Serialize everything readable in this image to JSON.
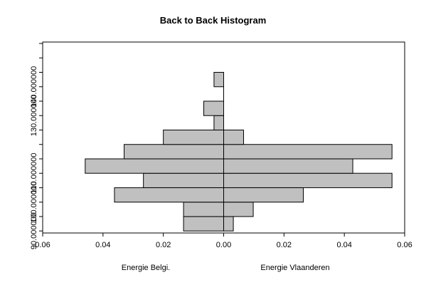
{
  "chart_data": {
    "type": "bar",
    "orientation": "horizontal-back-to-back",
    "title": "Back to Back Histogram",
    "bins": [
      {
        "lo": 90,
        "hi": 95
      },
      {
        "lo": 95,
        "hi": 100
      },
      {
        "lo": 100,
        "hi": 105
      },
      {
        "lo": 105,
        "hi": 110
      },
      {
        "lo": 110,
        "hi": 115
      },
      {
        "lo": 115,
        "hi": 120
      },
      {
        "lo": 120,
        "hi": 125
      },
      {
        "lo": 125,
        "hi": 130
      },
      {
        "lo": 130,
        "hi": 135
      },
      {
        "lo": 135,
        "hi": 140
      },
      {
        "lo": 140,
        "hi": 145
      },
      {
        "lo": 145,
        "hi": 150
      },
      {
        "lo": 150,
        "hi": 155
      }
    ],
    "series": [
      {
        "name": "Energie Belgi.",
        "side": "left",
        "values": [
          0.0133,
          0.0133,
          0.0362,
          0.0266,
          0.0459,
          0.033,
          0.02,
          0.0032,
          0.0066,
          0,
          0.0032,
          0,
          0
        ]
      },
      {
        "name": "Energie Vlaanderen",
        "side": "right",
        "values": [
          0.0032,
          0.0098,
          0.0264,
          0.0558,
          0.0428,
          0.0558,
          0.0066,
          0,
          0,
          0,
          0,
          0,
          0
        ]
      }
    ],
    "x_ticks": [
      "0.06",
      "0.04",
      "0.02",
      "0.00",
      "0.02",
      "0.04",
      "0.06"
    ],
    "x_tick_values": [
      -0.06,
      -0.04,
      -0.02,
      0,
      0.02,
      0.04,
      0.06
    ],
    "xlim": [
      -0.06,
      0.06
    ],
    "y_tick_labels": [
      {
        "value": 90,
        "label": "90.000000"
      },
      {
        "value": 100,
        "label": "100.000000"
      },
      {
        "value": 110,
        "label": "110.000000"
      },
      {
        "value": 130,
        "label": "130.000000"
      },
      {
        "value": 140,
        "label": "140.000000"
      }
    ],
    "y_minor_ticks": [
      90,
      95,
      100,
      105,
      110,
      115,
      120,
      125,
      130,
      135,
      140,
      145,
      150,
      155
    ],
    "ylim": [
      89.3,
      155.5
    ],
    "bar_color": "#c0c0c0",
    "edge_color": "#000000",
    "grid": false
  }
}
